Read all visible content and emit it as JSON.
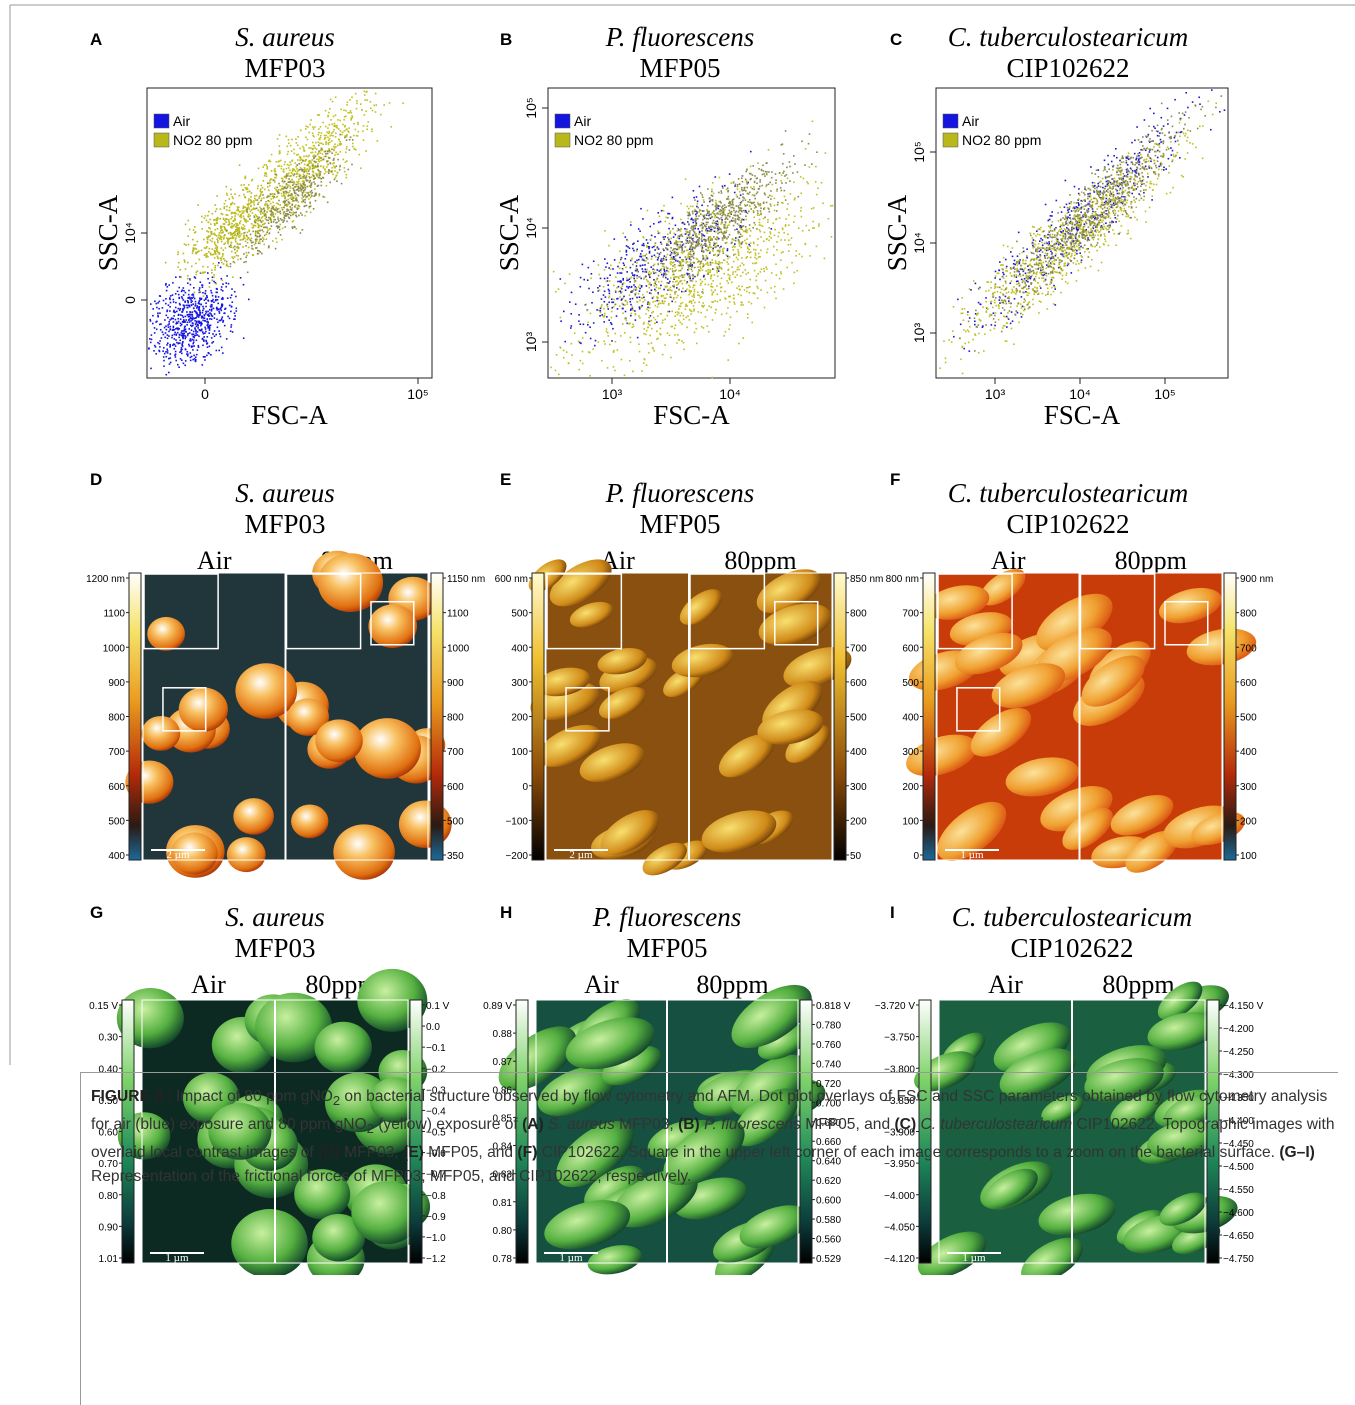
{
  "figure": {
    "flow_panels": [
      {
        "letter": "A",
        "species": "S. aureus",
        "strain": "MFP03",
        "x_label": "FSC-A",
        "y_label": "SSC-A",
        "legend": [
          "Air",
          "NO2 80 ppm"
        ],
        "xticks": [
          "0",
          "10⁵"
        ],
        "yticks": [
          "10⁴",
          "0"
        ]
      },
      {
        "letter": "B",
        "species": "P. fluorescens",
        "strain": "MFP05",
        "x_label": "FSC-A",
        "y_label": "SSC-A",
        "legend": [
          "Air",
          "NO2 80 ppm"
        ],
        "xticks": [
          "10³",
          "10⁴"
        ],
        "yticks": [
          "10⁵",
          "10⁴",
          "10³"
        ]
      },
      {
        "letter": "C",
        "species": "C. tuberculostearicum",
        "strain": "CIP102622",
        "x_label": "FSC-A",
        "y_label": "SSC-A",
        "legend": [
          "Air",
          "NO2 80 ppm"
        ],
        "xticks": [
          "10³",
          "10⁴",
          "10⁵"
        ],
        "yticks": [
          "10⁵",
          "10⁴",
          "10³"
        ]
      }
    ],
    "afm_topography": [
      {
        "letter": "D",
        "species": "S. aureus",
        "strain": "MFP03",
        "left_label": "Air",
        "right_label": "80ppm",
        "left_scale": [
          "1200 nm",
          "1100",
          "1000",
          "900",
          "800",
          "700",
          "600",
          "500",
          "400"
        ],
        "right_scale": [
          "1150 nm",
          "1100",
          "1000",
          "900",
          "800",
          "700",
          "600",
          "500",
          "350"
        ],
        "scale_bar": "2 µm"
      },
      {
        "letter": "E",
        "species": "P. fluorescens",
        "strain": "MFP05",
        "left_label": "Air",
        "right_label": "80ppm",
        "left_scale": [
          "600 nm",
          "500",
          "400",
          "300",
          "200",
          "100",
          "0",
          "−100",
          "−200"
        ],
        "right_scale": [
          "850 nm",
          "800",
          "700",
          "600",
          "500",
          "400",
          "300",
          "200",
          "50"
        ],
        "scale_bar": "2 µm"
      },
      {
        "letter": "F",
        "species": "C. tuberculostearicum",
        "strain": "CIP102622",
        "left_label": "Air",
        "right_label": "80ppm",
        "left_scale": [
          "800 nm",
          "700",
          "600",
          "500",
          "400",
          "300",
          "200",
          "100",
          "0"
        ],
        "right_scale": [
          "900 nm",
          "800",
          "700",
          "600",
          "500",
          "400",
          "300",
          "200",
          "100"
        ],
        "scale_bar": "1 µm"
      }
    ],
    "afm_friction": [
      {
        "letter": "G",
        "species": "S. aureus",
        "strain": "MFP03",
        "left_label": "Air",
        "right_label": "80ppm",
        "left_scale": [
          "0.15 V",
          "0.30",
          "0.40",
          "0.50",
          "0.60",
          "0.70",
          "0.80",
          "0.90",
          "1.01"
        ],
        "right_scale": [
          "0.1 V",
          "0.0",
          "−0.1",
          "−0.2",
          "−0.3",
          "−0.4",
          "−0.5",
          "−0.6",
          "−0.7",
          "−0.8",
          "−0.9",
          "−1.0",
          "−1.2"
        ],
        "scale_bar": "1 µm"
      },
      {
        "letter": "H",
        "species": "P. fluorescens",
        "strain": "MFP05",
        "left_label": "Air",
        "right_label": "80ppm",
        "left_scale": [
          "0.89 V",
          "0.88",
          "0.87",
          "0.86",
          "0.85",
          "0.84",
          "0.83",
          "0.81",
          "0.80",
          "0.78"
        ],
        "right_scale": [
          "0.818 V",
          "0.780",
          "0.760",
          "0.740",
          "0.720",
          "0.700",
          "0.680",
          "0.660",
          "0.640",
          "0.620",
          "0.600",
          "0.580",
          "0.560",
          "0.529"
        ],
        "scale_bar": "1 µm"
      },
      {
        "letter": "I",
        "species": "C. tuberculostearicum",
        "strain": "CIP102622",
        "left_label": "Air",
        "right_label": "80ppm",
        "left_scale": [
          "−3.720 V",
          "−3.750",
          "−3.800",
          "−3.850",
          "−3.900",
          "−3.950",
          "−4.000",
          "−4.050",
          "−4.120"
        ],
        "right_scale": [
          "−4.150 V",
          "−4.200",
          "−4.250",
          "−4.300",
          "−4.350",
          "−4.400",
          "−4.450",
          "−4.500",
          "−4.550",
          "−4.600",
          "−4.650",
          "−4.750"
        ],
        "scale_bar": "1 µm"
      }
    ],
    "caption": [
      "FIGURE 8 |",
      " Impact of 80 ppm gNO",
      "2",
      " on bacterial structure observed by flow cytometry and AFM. Dot plot overlays of FSC and SSC parameters obtained by flow cytometry analysis for air (blue) exposure and 80 ppm gNO",
      "2",
      " (yellow) exposure of ",
      "(A)",
      " S. aureus",
      " MFP03, ",
      "(B)",
      " P. fluorescens",
      " MFP05, and ",
      "(C)",
      " C. tuberculostearicum",
      " CIP102622. Topographic images with overlaid local contrast images of ",
      "(D)",
      " MFP03, ",
      "(E)",
      " MFP05, and ",
      "(F)",
      " CIP102622. Square in the upper left corner of each image corresponds to a zoom on the bacterial surface. ",
      "(G–I)",
      " Representation of the frictional forces of MFP03, MFP05, and CIP102622, respectively."
    ]
  }
}
